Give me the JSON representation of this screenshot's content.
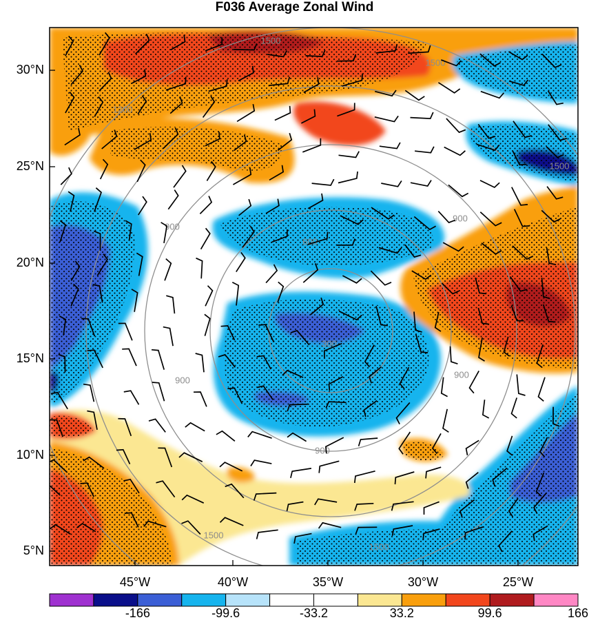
{
  "title": "F036 Average Zonal Wind",
  "lat_labels": [
    "30°N",
    "25°N",
    "20°N",
    "15°N",
    "10°N",
    "5°N"
  ],
  "lon_labels": [
    "45°W",
    "40°W",
    "35°W",
    "30°W",
    "25°W"
  ],
  "colorbar": {
    "colors": [
      "#9f31d0",
      "#0a0f8a",
      "#3b5fd6",
      "#16b4ee",
      "#b7e3fa",
      "#ffffff",
      "#ffffff",
      "#fbe792",
      "#f99f0d",
      "#f2461c",
      "#b01b1e",
      "#ff87c4"
    ],
    "labels": [
      "-166",
      "-99.6",
      "-33.2",
      "33.2",
      "99.6",
      "166"
    ]
  },
  "ring_labels": [
    {
      "text": "300"
    },
    {
      "text": "600"
    },
    {
      "text": "900"
    },
    {
      "text": "900"
    },
    {
      "text": "900"
    },
    {
      "text": "900"
    },
    {
      "text": "900"
    },
    {
      "text": "1200"
    },
    {
      "text": "1500"
    },
    {
      "text": "1500"
    },
    {
      "text": "1500"
    },
    {
      "text": "1500"
    },
    {
      "text": "1500"
    }
  ]
}
